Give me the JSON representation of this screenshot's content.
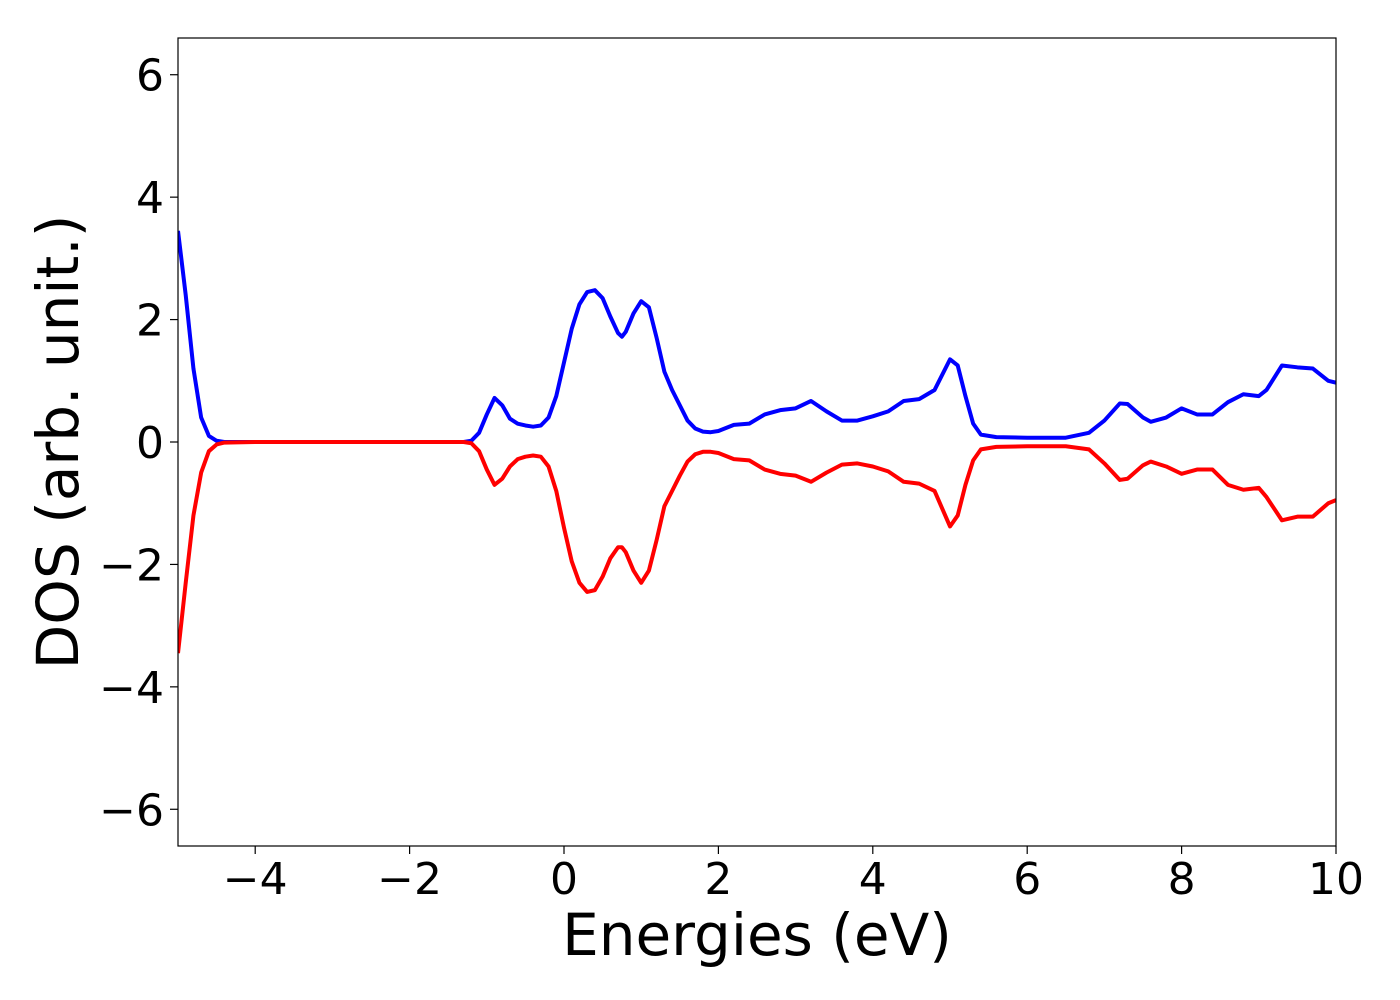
{
  "chart_data": {
    "type": "line",
    "xlabel": "Energies (eV)",
    "ylabel": "DOS (arb. unit.)",
    "x": [
      -5,
      -4.9,
      -4.8,
      -4.7,
      -4.6,
      -4.5,
      -4.4,
      -4,
      -3,
      -2,
      -1.3,
      -1.2,
      -1.1,
      -1,
      -0.9,
      -0.8,
      -0.7,
      -0.6,
      -0.5,
      -0.4,
      -0.3,
      -0.2,
      -0.1,
      0,
      0.1,
      0.2,
      0.3,
      0.4,
      0.5,
      0.6,
      0.7,
      0.75,
      0.8,
      0.9,
      1,
      1.1,
      1.2,
      1.3,
      1.4,
      1.5,
      1.6,
      1.7,
      1.8,
      1.9,
      2,
      2.2,
      2.4,
      2.6,
      2.8,
      3,
      3.2,
      3.4,
      3.6,
      3.8,
      4,
      4.2,
      4.4,
      4.6,
      4.8,
      5,
      5.1,
      5.2,
      5.3,
      5.4,
      5.6,
      6,
      6.5,
      6.8,
      7,
      7.2,
      7.3,
      7.5,
      7.6,
      7.8,
      8,
      8.2,
      8.4,
      8.6,
      8.8,
      9,
      9.1,
      9.3,
      9.5,
      9.7,
      9.9,
      10
    ],
    "series": [
      {
        "color": "#0000ff",
        "values": [
          3.45,
          2.4,
          1.2,
          0.4,
          0.1,
          0.02,
          0,
          0,
          0,
          0,
          0,
          0.02,
          0.15,
          0.45,
          0.72,
          0.6,
          0.38,
          0.3,
          0.27,
          0.25,
          0.27,
          0.4,
          0.75,
          1.3,
          1.85,
          2.25,
          2.45,
          2.48,
          2.35,
          2.05,
          1.78,
          1.72,
          1.8,
          2.1,
          2.3,
          2.2,
          1.7,
          1.15,
          0.85,
          0.6,
          0.35,
          0.22,
          0.17,
          0.16,
          0.18,
          0.28,
          0.3,
          0.45,
          0.52,
          0.55,
          0.67,
          0.5,
          0.35,
          0.35,
          0.42,
          0.5,
          0.67,
          0.7,
          0.85,
          1.35,
          1.25,
          0.75,
          0.3,
          0.12,
          0.08,
          0.07,
          0.07,
          0.15,
          0.35,
          0.63,
          0.62,
          0.4,
          0.33,
          0.4,
          0.55,
          0.45,
          0.45,
          0.65,
          0.78,
          0.75,
          0.85,
          1.25,
          1.22,
          1.2,
          1.0,
          0.97
        ]
      },
      {
        "color": "#ff0000",
        "values": [
          -3.45,
          -2.3,
          -1.2,
          -0.5,
          -0.15,
          -0.04,
          -0.01,
          0,
          0,
          0,
          0,
          -0.02,
          -0.15,
          -0.45,
          -0.7,
          -0.6,
          -0.4,
          -0.28,
          -0.24,
          -0.22,
          -0.24,
          -0.4,
          -0.8,
          -1.4,
          -1.95,
          -2.3,
          -2.45,
          -2.42,
          -2.2,
          -1.9,
          -1.72,
          -1.72,
          -1.8,
          -2.1,
          -2.3,
          -2.1,
          -1.6,
          -1.05,
          -0.8,
          -0.55,
          -0.32,
          -0.2,
          -0.16,
          -0.16,
          -0.18,
          -0.28,
          -0.3,
          -0.45,
          -0.52,
          -0.55,
          -0.65,
          -0.5,
          -0.37,
          -0.35,
          -0.4,
          -0.48,
          -0.65,
          -0.68,
          -0.8,
          -1.38,
          -1.2,
          -0.7,
          -0.3,
          -0.12,
          -0.08,
          -0.07,
          -0.07,
          -0.12,
          -0.35,
          -0.62,
          -0.6,
          -0.38,
          -0.32,
          -0.4,
          -0.52,
          -0.45,
          -0.45,
          -0.7,
          -0.78,
          -0.75,
          -0.9,
          -1.28,
          -1.22,
          -1.22,
          -1.0,
          -0.95
        ]
      }
    ],
    "xlim": [
      -5,
      10
    ],
    "xticks": [
      {
        "value": -4,
        "label": "−4"
      },
      {
        "value": -2,
        "label": "−2"
      },
      0,
      2,
      4,
      6,
      8,
      10
    ],
    "ylim": [
      -6.6,
      6.6
    ],
    "yticks": [
      {
        "value": -6,
        "label": "−6"
      },
      {
        "value": -4,
        "label": "−4"
      },
      {
        "value": -2,
        "label": "−2"
      },
      0,
      2,
      4,
      6
    ],
    "grid": false
  }
}
